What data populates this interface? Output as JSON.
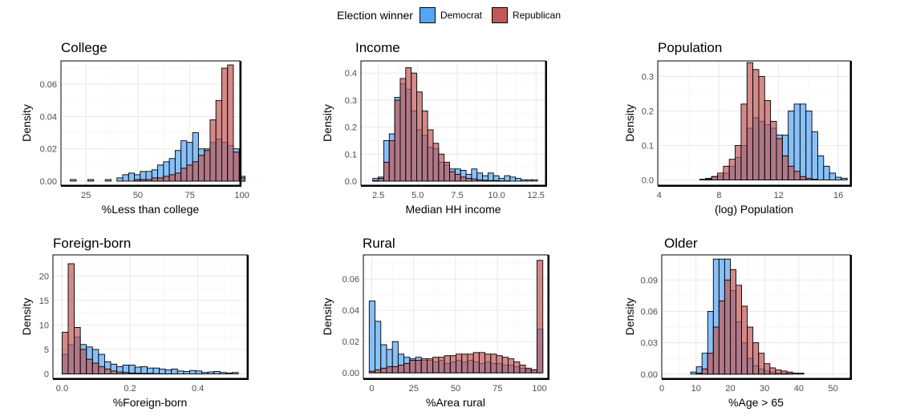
{
  "legend": {
    "title": "Election winner",
    "items": [
      {
        "name": "Democrat",
        "color": "#56a5f5"
      },
      {
        "name": "Republican",
        "color": "#c05857"
      }
    ]
  },
  "chart_data": [
    {
      "type": "histogram",
      "title": "College",
      "xlabel": "%Less than college",
      "ylabel": "Density",
      "xlim": [
        13,
        99
      ],
      "ylim": [
        -0.0025,
        0.0745
      ],
      "xticks": [
        {
          "v": 25,
          "l": "25"
        },
        {
          "v": 50,
          "l": "50"
        },
        {
          "v": 75,
          "l": "75"
        },
        {
          "v": 100,
          "l": "100"
        }
      ],
      "yticks": [
        {
          "v": 0,
          "l": "0.00"
        },
        {
          "v": 0.02,
          "l": "0.02"
        },
        {
          "v": 0.04,
          "l": "0.04"
        },
        {
          "v": 0.06,
          "l": "0.06"
        }
      ],
      "bin_start": 17.5,
      "bin_width": 2.8,
      "series": [
        {
          "name": "Democrat",
          "values": [
            0.001,
            0,
            0,
            0.001,
            0,
            0,
            0.001,
            0,
            0.002,
            0.004,
            0.005,
            0.004,
            0.006,
            0.006,
            0.007,
            0.01,
            0.012,
            0.014,
            0.019,
            0.025,
            0.024,
            0.03,
            0.02,
            0.02,
            0.024,
            0.026,
            0.024,
            0.022,
            0.02,
            0.003
          ]
        },
        {
          "name": "Republican",
          "values": [
            0,
            0,
            0,
            0,
            0,
            0,
            0,
            0,
            0,
            0,
            0,
            0.001,
            0.001,
            0.001,
            0.002,
            0.002,
            0.003,
            0.004,
            0.005,
            0.008,
            0.01,
            0.012,
            0.016,
            0.019,
            0.038,
            0.05,
            0.07,
            0.072,
            0.018,
            0.002
          ]
        }
      ]
    },
    {
      "type": "histogram",
      "title": "Income",
      "xlabel": "Median HH income",
      "ylabel": "Density",
      "xlim": [
        1.4,
        13.1
      ],
      "ylim": [
        -0.015,
        0.445
      ],
      "xticks": [
        {
          "v": 2.5,
          "l": "2.5"
        },
        {
          "v": 5,
          "l": "5.0"
        },
        {
          "v": 7.5,
          "l": "7.5"
        },
        {
          "v": 10,
          "l": "10.0"
        },
        {
          "v": 12.5,
          "l": "12.5"
        }
      ],
      "yticks": [
        {
          "v": 0,
          "l": "0.0"
        },
        {
          "v": 0.1,
          "l": "0.1"
        },
        {
          "v": 0.2,
          "l": "0.2"
        },
        {
          "v": 0.3,
          "l": "0.3"
        },
        {
          "v": 0.4,
          "l": "0.4"
        }
      ],
      "bin_start": 2.15,
      "bin_width": 0.348,
      "series": [
        {
          "name": "Democrat",
          "values": [
            0.01,
            0.015,
            0.15,
            0.175,
            0.31,
            0.36,
            0.34,
            0.26,
            0.19,
            0.17,
            0.125,
            0.12,
            0.07,
            0.06,
            0.045,
            0.045,
            0.04,
            0.025,
            0.045,
            0.03,
            0.02,
            0.03,
            0.02,
            0.01,
            0.02,
            0.015,
            0.01,
            0.005,
            0.005,
            0.005
          ]
        },
        {
          "name": "Republican",
          "values": [
            0.002,
            0.01,
            0.07,
            0.15,
            0.3,
            0.38,
            0.42,
            0.4,
            0.33,
            0.26,
            0.19,
            0.14,
            0.1,
            0.07,
            0.035,
            0.025,
            0.015,
            0.01,
            0.008,
            0.005,
            0.003,
            0.002,
            0.002,
            0.001,
            0.001,
            0,
            0,
            0,
            0,
            0
          ]
        }
      ]
    },
    {
      "type": "histogram",
      "title": "Population",
      "xlabel": "(log) Population",
      "ylabel": "Density",
      "xlim": [
        3.9,
        16.8
      ],
      "ylim": [
        -0.015,
        0.345
      ],
      "xticks": [
        {
          "v": 4,
          "l": "4"
        },
        {
          "v": 8,
          "l": "8"
        },
        {
          "v": 12,
          "l": "12"
        },
        {
          "v": 16,
          "l": "16"
        }
      ],
      "yticks": [
        {
          "v": 0,
          "l": "0.0"
        },
        {
          "v": 0.1,
          "l": "0.1"
        },
        {
          "v": 0.2,
          "l": "0.2"
        },
        {
          "v": 0.3,
          "l": "0.3"
        }
      ],
      "bin_start": 4.35,
      "bin_width": 0.395,
      "series": [
        {
          "name": "Democrat",
          "values": [
            0,
            0,
            0,
            0,
            0,
            0,
            0.002,
            0.005,
            0.01,
            0.012,
            0.02,
            0.04,
            0.065,
            0.1,
            0.15,
            0.18,
            0.17,
            0.16,
            0.15,
            0.13,
            0.13,
            0.2,
            0.22,
            0.22,
            0.2,
            0.14,
            0.07,
            0.04,
            0.02,
            0.008,
            0.005
          ]
        },
        {
          "name": "Republican",
          "values": [
            0,
            0,
            0,
            0,
            0,
            0,
            0,
            0.002,
            0.01,
            0.02,
            0.04,
            0.06,
            0.1,
            0.22,
            0.34,
            0.32,
            0.3,
            0.23,
            0.17,
            0.12,
            0.07,
            0.04,
            0.025,
            0.01,
            0.005,
            0.002,
            0,
            0,
            0,
            0,
            0
          ]
        }
      ]
    },
    {
      "type": "histogram",
      "title": "Foreign-born",
      "xlabel": "%Foreign-born",
      "ylabel": "Density",
      "xlim": [
        -0.027,
        0.545
      ],
      "ylim": [
        -0.9,
        24.3
      ],
      "xticks": [
        {
          "v": 0,
          "l": "0.0"
        },
        {
          "v": 0.2,
          "l": "0.2"
        },
        {
          "v": 0.4,
          "l": "0.4"
        }
      ],
      "yticks": [
        {
          "v": 0,
          "l": "0"
        },
        {
          "v": 5,
          "l": "5"
        },
        {
          "v": 10,
          "l": "10"
        },
        {
          "v": 15,
          "l": "15"
        },
        {
          "v": 20,
          "l": "20"
        }
      ],
      "bin_start": 0,
      "bin_width": 0.0179,
      "series": [
        {
          "name": "Democrat",
          "values": [
            4,
            6,
            7.5,
            6,
            5.5,
            5,
            4,
            2.5,
            2,
            1.5,
            1.8,
            1.8,
            1.4,
            1.5,
            1.2,
            1.2,
            1,
            0.8,
            1,
            0.6,
            0.5,
            0.7,
            0.6,
            0.3,
            0.4,
            0.5,
            0.3,
            0.2,
            0.3
          ]
        },
        {
          "name": "Republican",
          "values": [
            8.5,
            22.5,
            9.5,
            5,
            3,
            2.2,
            1.5,
            1,
            0.6,
            0.4,
            0.3,
            0.2,
            0.15,
            0.1,
            0.1,
            0.05,
            0.03,
            0.02,
            0.01,
            0,
            0,
            0,
            0,
            0,
            0,
            0,
            0,
            0,
            0
          ]
        }
      ]
    },
    {
      "type": "histogram",
      "title": "Rural",
      "xlabel": "%Area rural",
      "ylabel": "Density",
      "xlim": [
        -5,
        105
      ],
      "ylim": [
        -0.0035,
        0.0755
      ],
      "xticks": [
        {
          "v": 0,
          "l": "0"
        },
        {
          "v": 25,
          "l": "25"
        },
        {
          "v": 50,
          "l": "50"
        },
        {
          "v": 75,
          "l": "75"
        },
        {
          "v": 100,
          "l": "100"
        }
      ],
      "yticks": [
        {
          "v": 0,
          "l": "0.00"
        },
        {
          "v": 0.02,
          "l": "0.02"
        },
        {
          "v": 0.04,
          "l": "0.04"
        },
        {
          "v": 0.06,
          "l": "0.06"
        }
      ],
      "bin_start": -1.5,
      "bin_width": 3.45,
      "series": [
        {
          "name": "Democrat",
          "values": [
            0.046,
            0.033,
            0.018,
            0.015,
            0.02,
            0.012,
            0.01,
            0.009,
            0.01,
            0.008,
            0.008,
            0.007,
            0.008,
            0.006,
            0.007,
            0.008,
            0.007,
            0.008,
            0.007,
            0.006,
            0.007,
            0.006,
            0.006,
            0.005,
            0.005,
            0.004,
            0.003,
            0.002,
            0.002,
            0.028
          ]
        },
        {
          "name": "Republican",
          "values": [
            0.001,
            0.002,
            0.003,
            0.004,
            0.004,
            0.005,
            0.006,
            0.008,
            0.008,
            0.009,
            0.009,
            0.01,
            0.01,
            0.011,
            0.011,
            0.012,
            0.012,
            0.012,
            0.013,
            0.013,
            0.012,
            0.012,
            0.011,
            0.01,
            0.009,
            0.007,
            0.005,
            0.003,
            0.002,
            0.072
          ]
        }
      ]
    },
    {
      "type": "histogram",
      "title": "Older",
      "xlabel": "%Age > 65",
      "ylabel": "Density",
      "xlim": [
        0,
        55
      ],
      "ylim": [
        -0.004,
        0.114
      ],
      "xticks": [
        {
          "v": 0,
          "l": "0"
        },
        {
          "v": 10,
          "l": "10"
        },
        {
          "v": 20,
          "l": "20"
        },
        {
          "v": 30,
          "l": "30"
        },
        {
          "v": 40,
          "l": "40"
        },
        {
          "v": 50,
          "l": "50"
        }
      ],
      "yticks": [
        {
          "v": 0,
          "l": "0.00"
        },
        {
          "v": 0.03,
          "l": "0.03"
        },
        {
          "v": 0.06,
          "l": "0.06"
        },
        {
          "v": 0.09,
          "l": "0.09"
        }
      ],
      "bin_start": 3.5,
      "bin_width": 1.65,
      "series": [
        {
          "name": "Democrat",
          "values": [
            0,
            0,
            0,
            0.002,
            0.007,
            0.02,
            0.06,
            0.11,
            0.11,
            0.11,
            0.08,
            0.05,
            0.03,
            0.015,
            0.008,
            0.005,
            0.003,
            0.002,
            0.001,
            0.001,
            0.001,
            0,
            0,
            0,
            0,
            0,
            0,
            0,
            0
          ]
        },
        {
          "name": "Republican",
          "values": [
            0,
            0,
            0,
            0,
            0.001,
            0.005,
            0.02,
            0.045,
            0.07,
            0.09,
            0.1,
            0.085,
            0.065,
            0.045,
            0.03,
            0.02,
            0.01,
            0.006,
            0.004,
            0.003,
            0.002,
            0.001,
            0.001,
            0,
            0,
            0,
            0,
            0,
            0
          ]
        }
      ]
    }
  ]
}
